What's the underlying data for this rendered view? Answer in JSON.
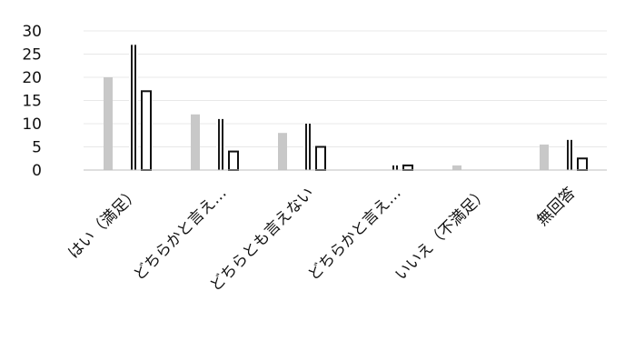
{
  "chart_data": {
    "type": "bar",
    "title": "",
    "xlabel": "",
    "ylabel": "",
    "ylim": [
      0,
      30
    ],
    "yticks": [
      0,
      5,
      10,
      15,
      20,
      25,
      30
    ],
    "grid": true,
    "legend": "none",
    "categories": [
      "はい（満足）",
      "どちらかと言え…",
      "どちらとも言えない",
      "どちらかと言え…",
      "いいえ（不満足）",
      "無回答"
    ],
    "series": [
      {
        "color": "#c8c8c8",
        "pattern": "solid-light",
        "values": [
          20,
          12,
          8,
          0,
          1,
          5.5
        ]
      },
      {
        "color": "#6e6e6e",
        "pattern": "speckled",
        "values": [
          0,
          0,
          0,
          0,
          0,
          0
        ]
      },
      {
        "color": "#1a1a1a",
        "pattern": "vertical-stripes",
        "values": [
          27,
          11,
          10,
          1,
          0,
          6.5
        ]
      },
      {
        "color": "#ffffff",
        "pattern": "outline",
        "values": [
          17,
          4,
          5,
          1,
          0,
          2.5
        ]
      }
    ]
  }
}
